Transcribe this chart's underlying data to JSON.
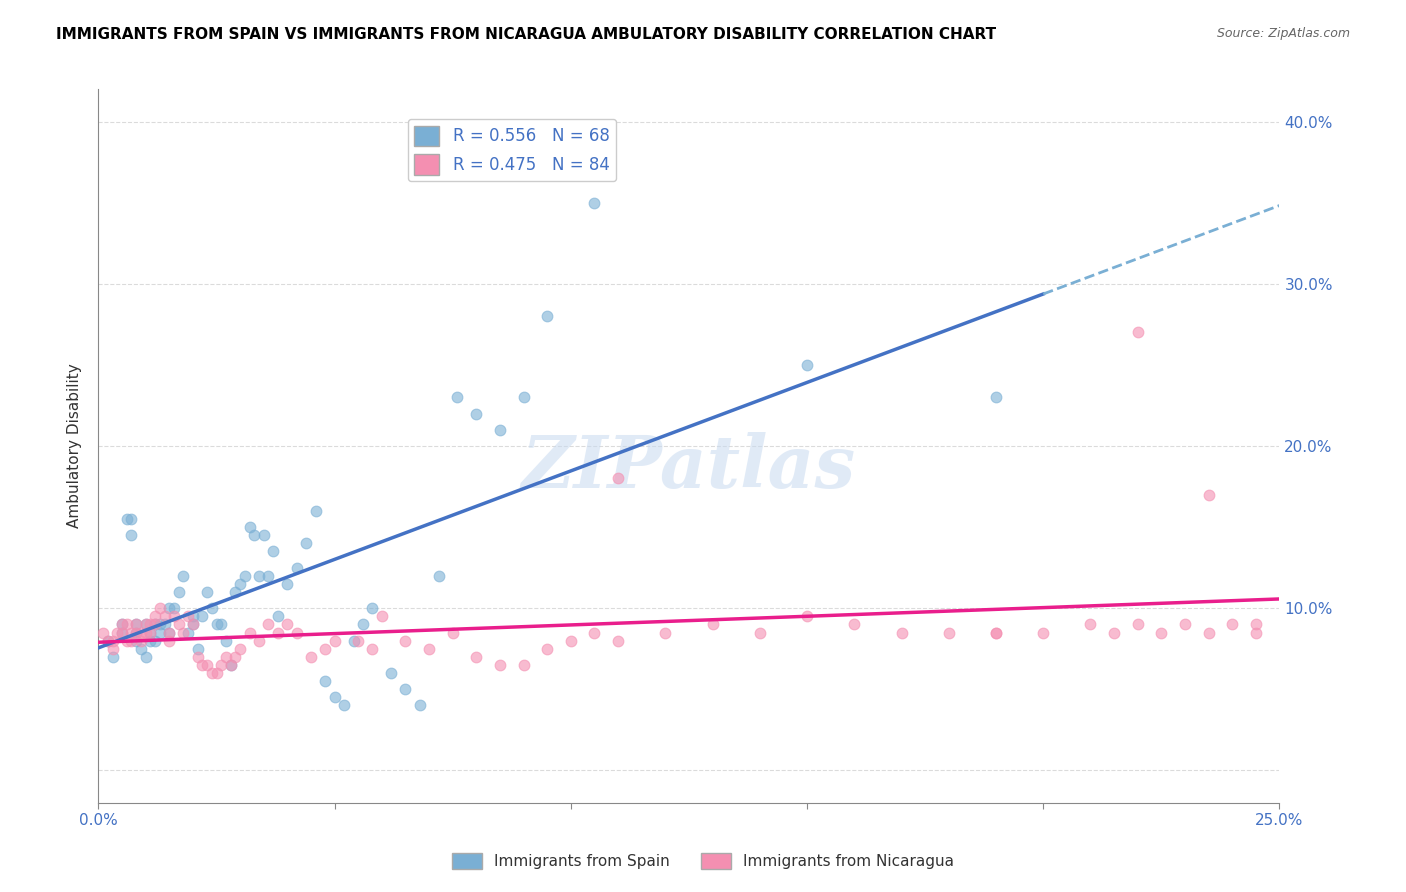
{
  "title": "IMMIGRANTS FROM SPAIN VS IMMIGRANTS FROM NICARAGUA AMBULATORY DISABILITY CORRELATION CHART",
  "source": "Source: ZipAtlas.com",
  "xlabel": "",
  "ylabel": "Ambulatory Disability",
  "xlim": [
    0.0,
    0.25
  ],
  "ylim": [
    -0.02,
    0.42
  ],
  "yticks": [
    0.0,
    0.1,
    0.2,
    0.3,
    0.4
  ],
  "ytick_labels": [
    "",
    "10.0%",
    "20.0%",
    "30.0%",
    "40.0%"
  ],
  "xticks": [
    0.0,
    0.05,
    0.1,
    0.15,
    0.2,
    0.25
  ],
  "xtick_labels": [
    "0.0%",
    "",
    "",
    "",
    "",
    "25.0%"
  ],
  "series_spain": {
    "label": "Immigrants from Spain",
    "color": "#7aafd4",
    "marker_color": "#7aafd4",
    "R": 0.556,
    "N": 68,
    "line_color": "#4472c4",
    "line_color_dashed": "#7aafd4"
  },
  "series_nicaragua": {
    "label": "Immigrants from Nicaragua",
    "color": "#f48fb1",
    "marker_color": "#f48fb1",
    "R": 0.475,
    "N": 84,
    "line_color": "#e91e8c"
  },
  "background_color": "#ffffff",
  "grid_color": "#cccccc",
  "title_color": "#000000",
  "axis_label_color": "#4472c4",
  "watermark": "ZIPatlas",
  "watermark_color": "#c8daf0",
  "spain_x": [
    0.002,
    0.003,
    0.005,
    0.005,
    0.006,
    0.007,
    0.007,
    0.008,
    0.008,
    0.008,
    0.009,
    0.01,
    0.01,
    0.011,
    0.011,
    0.012,
    0.012,
    0.013,
    0.013,
    0.014,
    0.015,
    0.015,
    0.016,
    0.017,
    0.018,
    0.019,
    0.02,
    0.02,
    0.021,
    0.022,
    0.023,
    0.024,
    0.025,
    0.026,
    0.027,
    0.028,
    0.029,
    0.03,
    0.031,
    0.032,
    0.033,
    0.034,
    0.035,
    0.036,
    0.037,
    0.038,
    0.04,
    0.042,
    0.044,
    0.046,
    0.048,
    0.05,
    0.052,
    0.054,
    0.056,
    0.058,
    0.062,
    0.065,
    0.068,
    0.072,
    0.076,
    0.08,
    0.085,
    0.09,
    0.095,
    0.105,
    0.15,
    0.19
  ],
  "spain_y": [
    0.08,
    0.07,
    0.085,
    0.09,
    0.155,
    0.155,
    0.145,
    0.09,
    0.085,
    0.08,
    0.075,
    0.09,
    0.07,
    0.085,
    0.08,
    0.09,
    0.08,
    0.09,
    0.085,
    0.09,
    0.085,
    0.1,
    0.1,
    0.11,
    0.12,
    0.085,
    0.095,
    0.09,
    0.075,
    0.095,
    0.11,
    0.1,
    0.09,
    0.09,
    0.08,
    0.065,
    0.11,
    0.115,
    0.12,
    0.15,
    0.145,
    0.12,
    0.145,
    0.12,
    0.135,
    0.095,
    0.115,
    0.125,
    0.14,
    0.16,
    0.055,
    0.045,
    0.04,
    0.08,
    0.09,
    0.1,
    0.06,
    0.05,
    0.04,
    0.12,
    0.23,
    0.22,
    0.21,
    0.23,
    0.28,
    0.35,
    0.25,
    0.23
  ],
  "nicaragua_x": [
    0.001,
    0.002,
    0.003,
    0.003,
    0.004,
    0.005,
    0.005,
    0.006,
    0.006,
    0.007,
    0.007,
    0.008,
    0.008,
    0.009,
    0.009,
    0.01,
    0.01,
    0.011,
    0.011,
    0.012,
    0.012,
    0.013,
    0.014,
    0.015,
    0.015,
    0.016,
    0.017,
    0.018,
    0.019,
    0.02,
    0.021,
    0.022,
    0.023,
    0.024,
    0.025,
    0.026,
    0.027,
    0.028,
    0.029,
    0.03,
    0.032,
    0.034,
    0.036,
    0.038,
    0.04,
    0.042,
    0.045,
    0.048,
    0.05,
    0.055,
    0.058,
    0.06,
    0.065,
    0.07,
    0.075,
    0.08,
    0.085,
    0.09,
    0.095,
    0.1,
    0.105,
    0.11,
    0.12,
    0.13,
    0.14,
    0.15,
    0.16,
    0.17,
    0.18,
    0.19,
    0.2,
    0.21,
    0.215,
    0.22,
    0.225,
    0.23,
    0.235,
    0.24,
    0.245,
    0.245,
    0.11,
    0.19,
    0.22,
    0.235
  ],
  "nicaragua_y": [
    0.085,
    0.08,
    0.075,
    0.08,
    0.085,
    0.09,
    0.085,
    0.09,
    0.08,
    0.085,
    0.08,
    0.09,
    0.085,
    0.085,
    0.08,
    0.09,
    0.085,
    0.09,
    0.085,
    0.09,
    0.095,
    0.1,
    0.095,
    0.085,
    0.08,
    0.095,
    0.09,
    0.085,
    0.095,
    0.09,
    0.07,
    0.065,
    0.065,
    0.06,
    0.06,
    0.065,
    0.07,
    0.065,
    0.07,
    0.075,
    0.085,
    0.08,
    0.09,
    0.085,
    0.09,
    0.085,
    0.07,
    0.075,
    0.08,
    0.08,
    0.075,
    0.095,
    0.08,
    0.075,
    0.085,
    0.07,
    0.065,
    0.065,
    0.075,
    0.08,
    0.085,
    0.08,
    0.085,
    0.09,
    0.085,
    0.095,
    0.09,
    0.085,
    0.085,
    0.085,
    0.085,
    0.09,
    0.085,
    0.09,
    0.085,
    0.09,
    0.085,
    0.09,
    0.085,
    0.09,
    0.18,
    0.085,
    0.27,
    0.17
  ]
}
